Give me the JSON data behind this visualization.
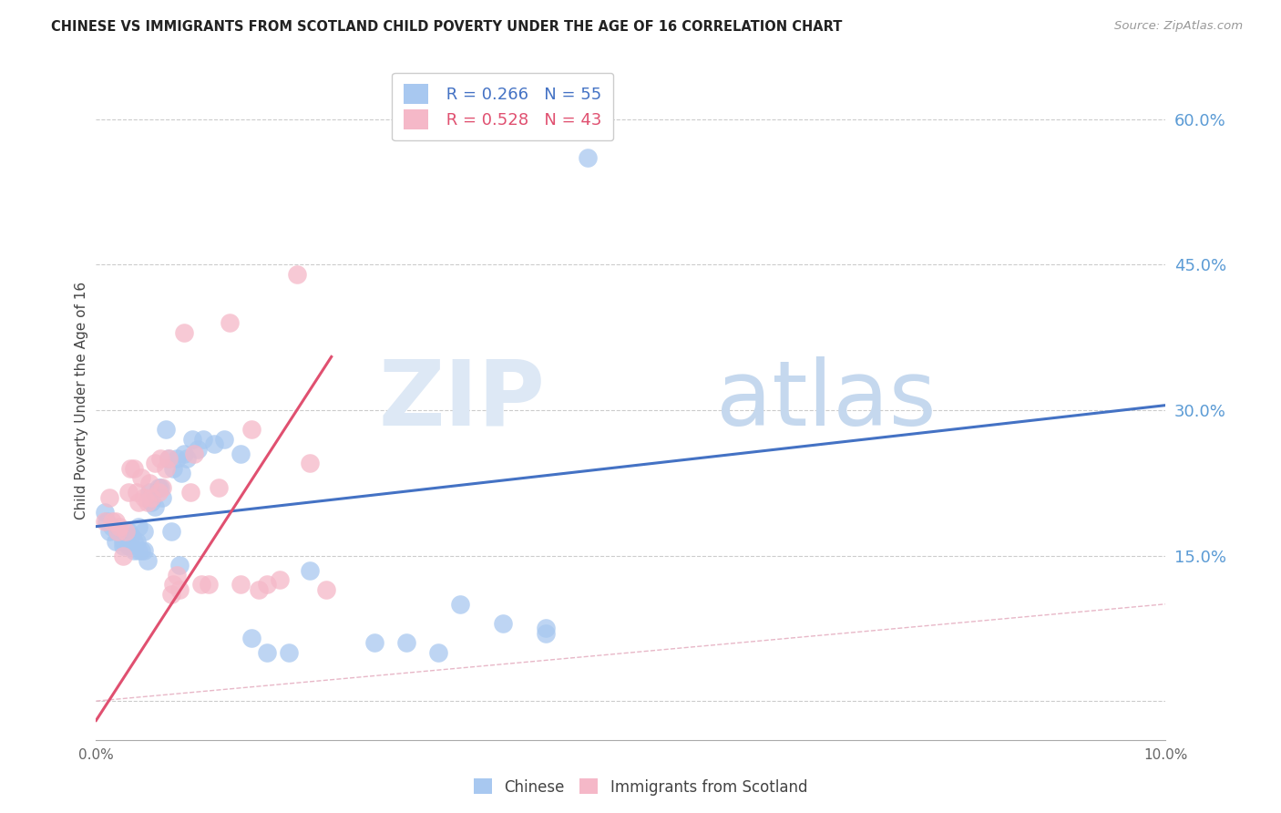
{
  "title": "CHINESE VS IMMIGRANTS FROM SCOTLAND CHILD POVERTY UNDER THE AGE OF 16 CORRELATION CHART",
  "source": "Source: ZipAtlas.com",
  "ylabel": "Child Poverty Under the Age of 16",
  "xlim": [
    0.0,
    0.1
  ],
  "ylim": [
    -0.04,
    0.66
  ],
  "yticks_right": [
    0.0,
    0.15,
    0.3,
    0.45,
    0.6
  ],
  "ytick_labels_right": [
    "",
    "15.0%",
    "30.0%",
    "45.0%",
    "60.0%"
  ],
  "legend_blue_r": "R = 0.266",
  "legend_blue_n": "N = 55",
  "legend_pink_r": "R = 0.528",
  "legend_pink_n": "N = 43",
  "legend_label_blue": "Chinese",
  "legend_label_pink": "Immigrants from Scotland",
  "blue_color": "#A8C8F0",
  "pink_color": "#F5B8C8",
  "blue_line_color": "#4472C4",
  "pink_line_color": "#E05070",
  "ref_line_color": "#D0D0D0",
  "background_color": "#FFFFFF",
  "blue_scatter_x": [
    0.0008,
    0.001,
    0.0012,
    0.0015,
    0.0018,
    0.002,
    0.0022,
    0.0025,
    0.0025,
    0.0028,
    0.003,
    0.003,
    0.0033,
    0.0035,
    0.0035,
    0.0038,
    0.004,
    0.004,
    0.0042,
    0.0045,
    0.0045,
    0.0048,
    0.005,
    0.0052,
    0.0055,
    0.0058,
    0.006,
    0.0062,
    0.0065,
    0.0068,
    0.007,
    0.0072,
    0.0075,
    0.0078,
    0.008,
    0.0082,
    0.0085,
    0.009,
    0.0095,
    0.01,
    0.011,
    0.012,
    0.0135,
    0.0145,
    0.016,
    0.018,
    0.02,
    0.026,
    0.029,
    0.032,
    0.034,
    0.038,
    0.042,
    0.042,
    0.046
  ],
  "blue_scatter_y": [
    0.195,
    0.185,
    0.175,
    0.18,
    0.165,
    0.175,
    0.175,
    0.165,
    0.16,
    0.17,
    0.175,
    0.16,
    0.17,
    0.165,
    0.155,
    0.165,
    0.18,
    0.155,
    0.155,
    0.155,
    0.175,
    0.145,
    0.215,
    0.205,
    0.2,
    0.22,
    0.22,
    0.21,
    0.28,
    0.25,
    0.175,
    0.24,
    0.25,
    0.14,
    0.235,
    0.255,
    0.25,
    0.27,
    0.26,
    0.27,
    0.265,
    0.27,
    0.255,
    0.065,
    0.05,
    0.05,
    0.135,
    0.06,
    0.06,
    0.05,
    0.1,
    0.08,
    0.075,
    0.07,
    0.56
  ],
  "pink_scatter_x": [
    0.0008,
    0.0012,
    0.0015,
    0.0018,
    0.002,
    0.0022,
    0.0025,
    0.0028,
    0.003,
    0.0032,
    0.0035,
    0.0038,
    0.004,
    0.0042,
    0.0045,
    0.0048,
    0.005,
    0.0052,
    0.0055,
    0.0058,
    0.006,
    0.0062,
    0.0065,
    0.0068,
    0.007,
    0.0072,
    0.0075,
    0.0078,
    0.0082,
    0.0088,
    0.0092,
    0.0098,
    0.0105,
    0.0115,
    0.0125,
    0.0135,
    0.0145,
    0.0152,
    0.016,
    0.0172,
    0.0188,
    0.02,
    0.0215
  ],
  "pink_scatter_y": [
    0.185,
    0.21,
    0.185,
    0.185,
    0.175,
    0.18,
    0.15,
    0.175,
    0.215,
    0.24,
    0.24,
    0.215,
    0.205,
    0.23,
    0.21,
    0.205,
    0.225,
    0.21,
    0.245,
    0.215,
    0.25,
    0.22,
    0.24,
    0.25,
    0.11,
    0.12,
    0.13,
    0.115,
    0.38,
    0.215,
    0.255,
    0.12,
    0.12,
    0.22,
    0.39,
    0.12,
    0.28,
    0.115,
    0.12,
    0.125,
    0.44,
    0.245,
    0.115
  ],
  "blue_trend_x": [
    0.0,
    0.1
  ],
  "blue_trend_y": [
    0.18,
    0.305
  ],
  "pink_trend_x": [
    0.0,
    0.022
  ],
  "pink_trend_y": [
    -0.02,
    0.355
  ],
  "ref_line_x": [
    0.0,
    0.66
  ],
  "ref_line_y": [
    0.0,
    0.66
  ]
}
